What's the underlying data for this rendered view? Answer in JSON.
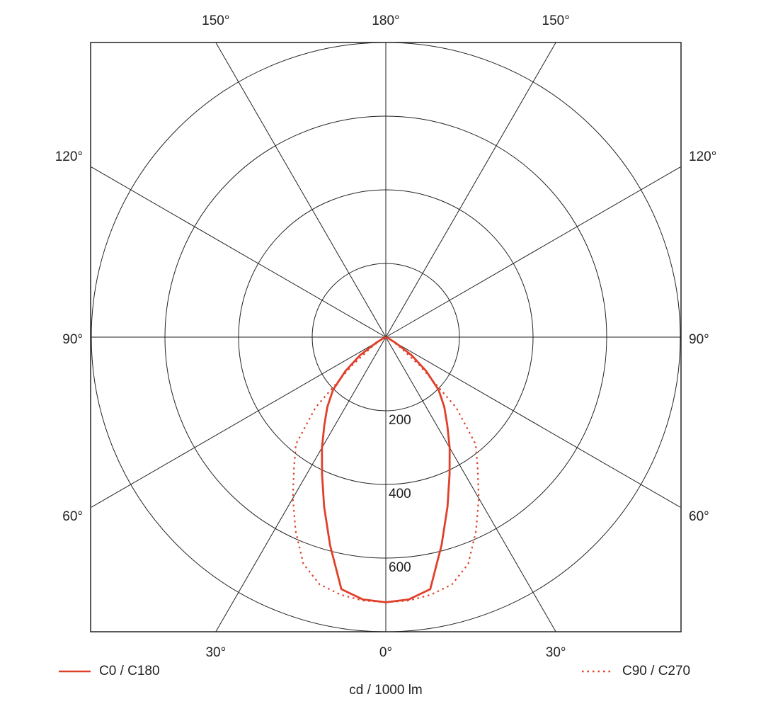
{
  "chart_data": {
    "type": "polar",
    "x_label": "cd / 1000 lm",
    "x": [
      0,
      5,
      10,
      15,
      20,
      25,
      30,
      35,
      40,
      45,
      50,
      55,
      60,
      65,
      70,
      75,
      80,
      85,
      90
    ],
    "series": [
      {
        "name": "C0 / C180",
        "color": "#e0402a",
        "dash": "solid",
        "values": [
          720,
          715,
          695,
          585,
          490,
          410,
          347,
          291,
          247,
          203,
          143,
          85,
          30,
          8,
          0,
          0,
          0,
          0,
          0
        ]
      },
      {
        "name": "C90 / C270",
        "color": "#e0402a",
        "dash": "dotted",
        "values": [
          720,
          718,
          710,
          695,
          655,
          580,
          505,
          435,
          380,
          270,
          120,
          47,
          15,
          0,
          0,
          0,
          0,
          0,
          0
        ]
      }
    ],
    "rlim": [
      0,
      800
    ],
    "rticks": [
      200,
      400,
      600
    ],
    "angle_ticks": [
      {
        "value": 0,
        "label": "0°"
      },
      {
        "value": 30,
        "label": "30°"
      },
      {
        "value": 60,
        "label": "60°"
      },
      {
        "value": 90,
        "label": "90°"
      },
      {
        "value": 120,
        "label": "120°"
      },
      {
        "value": 150,
        "label": "150°"
      },
      {
        "value": 180,
        "label": "180°"
      }
    ]
  }
}
